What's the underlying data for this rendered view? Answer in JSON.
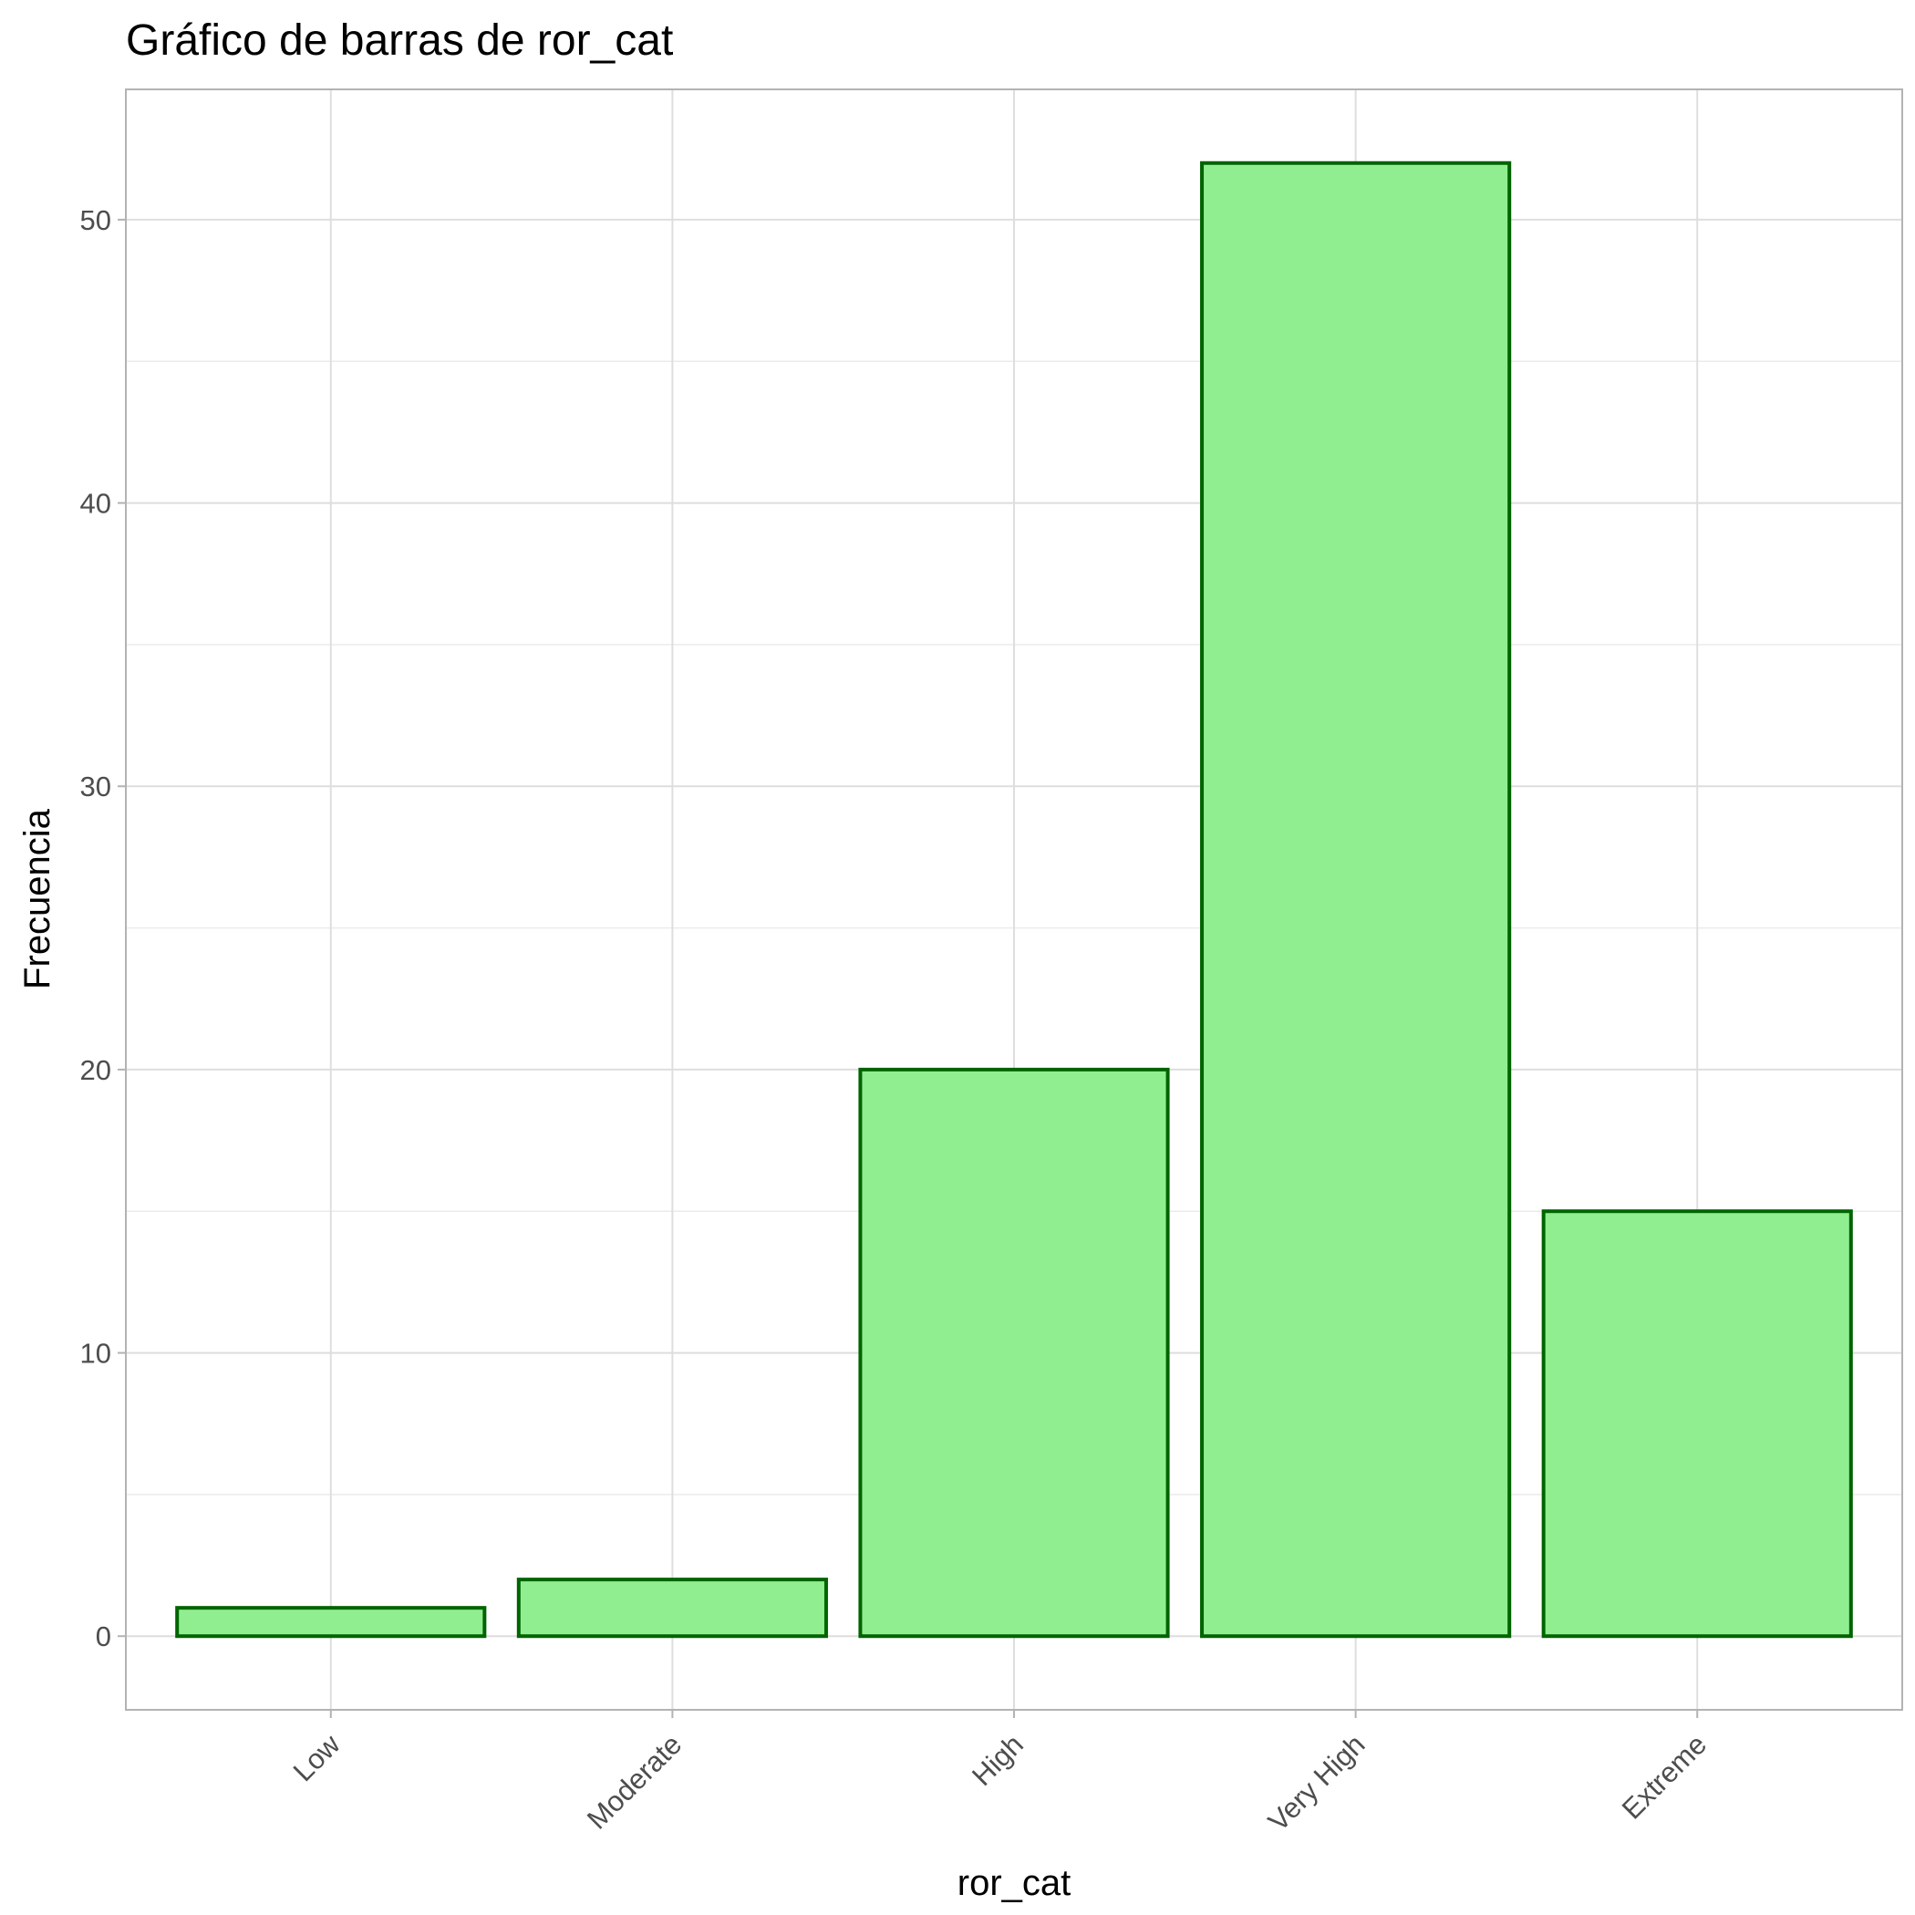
{
  "chart_data": {
    "type": "bar",
    "title": "Gráfico de barras de ror_cat",
    "xlabel": "ror_cat",
    "ylabel": "Frecuencia",
    "categories": [
      "Low",
      "Moderate",
      "High",
      "Very High",
      "Extreme"
    ],
    "values": [
      1,
      2,
      20,
      52,
      15
    ],
    "ylim": [
      -2.6,
      54.6
    ],
    "yticks": [
      0,
      10,
      20,
      30,
      40,
      50
    ],
    "grid": true,
    "legend": "none",
    "colors": {
      "bar_fill": "#90EE90",
      "bar_stroke": "#006400",
      "grid_major": "#DEDEDE",
      "grid_minor": "#EBEBEB",
      "panel_border": "#B3B3B3",
      "tick_text": "#4D4D4D"
    }
  }
}
